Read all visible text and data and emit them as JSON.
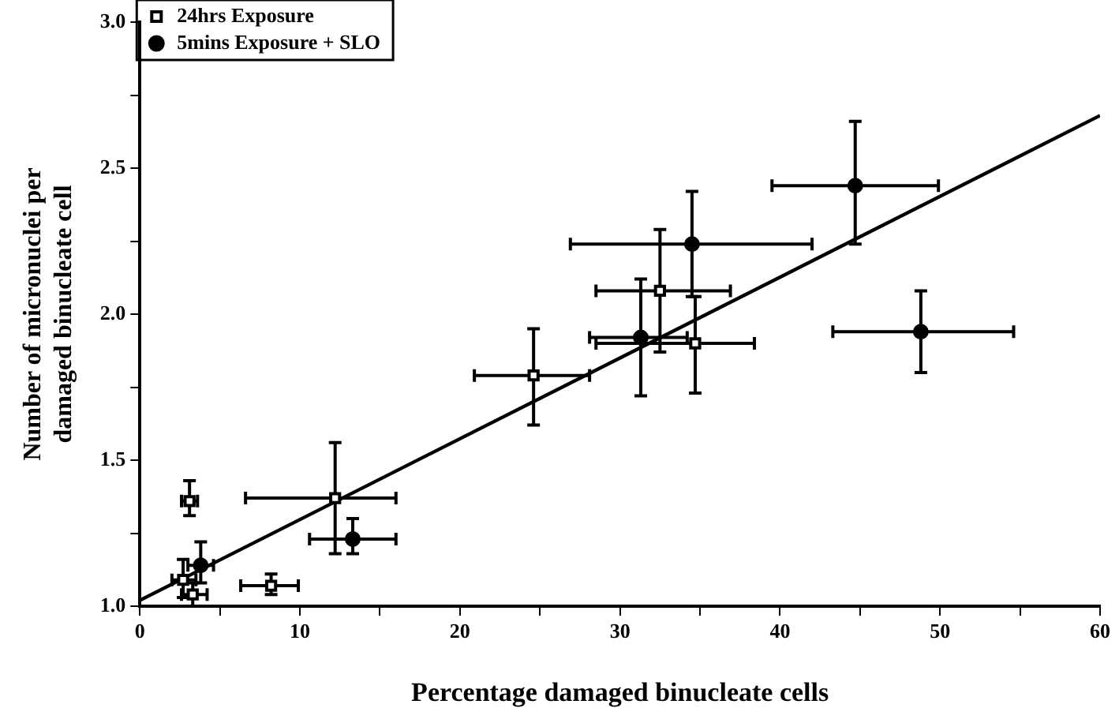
{
  "chart_data": {
    "type": "scatter",
    "xlabel": "Percentage damaged binucleate cells",
    "ylabel": "Number of micronuclei per\ndamaged binucleate cell",
    "xlim": [
      0,
      60
    ],
    "xticks": [
      0,
      {
        "value": 5,
        "label": null
      },
      10,
      {
        "value": 15,
        "label": null
      },
      20,
      {
        "value": 25,
        "label": null
      },
      30,
      {
        "value": 35,
        "label": null
      },
      40,
      {
        "value": 45,
        "label": null
      },
      50,
      {
        "value": 55,
        "label": null
      },
      60
    ],
    "ylim": [
      1.0,
      3.0
    ],
    "yticks": [
      {
        "value": 1.0,
        "label": "1.0"
      },
      {
        "value": 1.25,
        "label": null
      },
      {
        "value": 1.5,
        "label": "1.5"
      },
      {
        "value": 1.75,
        "label": null
      },
      {
        "value": 2.0,
        "label": "2.0"
      },
      {
        "value": 2.25,
        "label": null
      },
      {
        "value": 2.5,
        "label": "2.5"
      },
      {
        "value": 2.75,
        "label": null
      },
      {
        "value": 3.0,
        "label": "3.0"
      }
    ],
    "grid": false,
    "legend": "top left",
    "series": [
      {
        "name": "24hrs Exposure",
        "color": "#000000",
        "marker": "square",
        "x": [
          12.2,
          24.6,
          32.5,
          34.7,
          8.2,
          3.1,
          2.7,
          3.3
        ],
        "values": [
          1.37,
          1.79,
          2.08,
          1.9,
          1.07,
          1.36,
          1.09,
          1.04
        ],
        "xerrors": [
          [
            6.6,
            16.0
          ],
          [
            20.9,
            28.1
          ],
          [
            28.5,
            36.9
          ],
          [
            28.5,
            38.4
          ],
          [
            6.3,
            9.9
          ],
          [
            2.6,
            3.6
          ],
          [
            2.0,
            3.5
          ],
          [
            2.6,
            4.2
          ]
        ],
        "errors": [
          [
            1.18,
            1.56
          ],
          [
            1.62,
            1.95
          ],
          [
            1.87,
            2.29
          ],
          [
            1.73,
            2.06
          ],
          [
            1.04,
            1.11
          ],
          [
            1.31,
            1.43
          ],
          [
            1.03,
            1.16
          ],
          [
            1.0,
            1.08
          ]
        ]
      },
      {
        "name": "5mins Exposure + SLO",
        "color": "#000000",
        "marker": "circle",
        "x": [
          13.3,
          3.8,
          31.3,
          34.5,
          44.7,
          48.8
        ],
        "values": [
          1.23,
          1.14,
          1.92,
          2.24,
          2.44,
          1.94
        ],
        "xerrors": [
          [
            10.6,
            16.0
          ],
          [
            3.0,
            4.6
          ],
          [
            28.1,
            34.2
          ],
          [
            26.9,
            42.0
          ],
          [
            39.5,
            49.9
          ],
          [
            43.3,
            54.6
          ]
        ],
        "errors": [
          [
            1.18,
            1.3
          ],
          [
            1.08,
            1.22
          ],
          [
            1.72,
            2.12
          ],
          [
            2.06,
            2.42
          ],
          [
            2.24,
            2.66
          ],
          [
            1.8,
            2.08
          ]
        ]
      },
      {
        "type": "line",
        "color": "#000000",
        "x": [
          0,
          60
        ],
        "values": [
          1.02,
          2.68
        ]
      }
    ]
  }
}
